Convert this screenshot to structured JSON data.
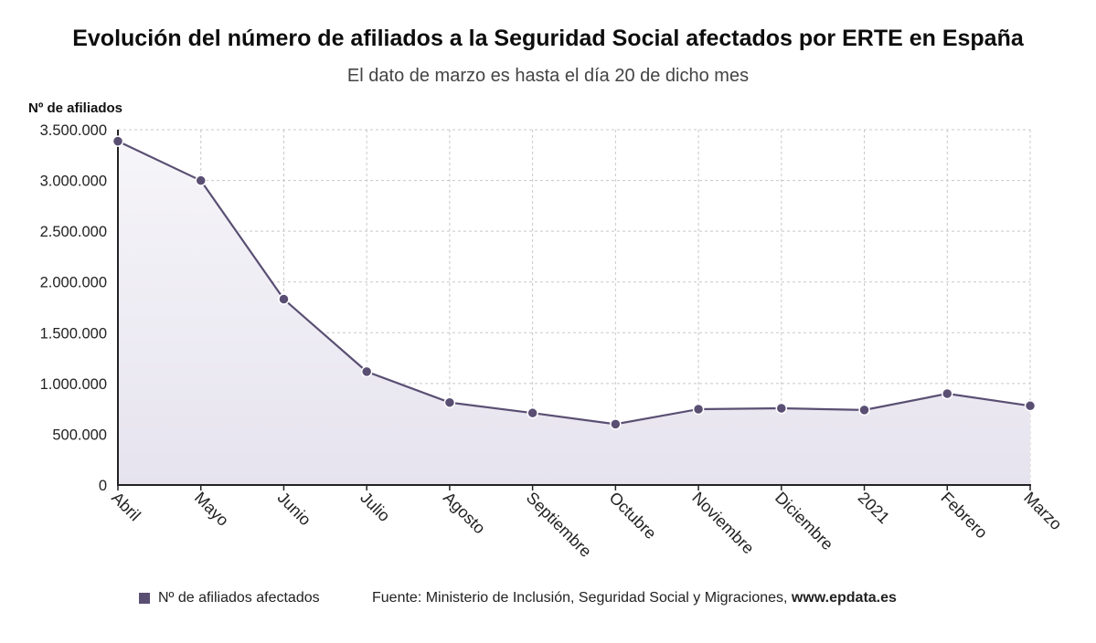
{
  "chart_data": {
    "type": "area",
    "title": "Evolución del número de afiliados a la Seguridad Social afectados por ERTE en España",
    "subtitle": "El dato de marzo es hasta el día 20 de dicho mes",
    "ylabel": "Nº de afiliados",
    "xlabel": "",
    "categories": [
      "Abril",
      "Mayo",
      "Junio",
      "Julio",
      "Agosto",
      "Septiembre",
      "Octubre",
      "Noviembre",
      "Diciembre",
      "2021",
      "Febrero",
      "Marzo"
    ],
    "series": [
      {
        "name": "Nº de afiliados afectados",
        "values": [
          3386785,
          2998970,
          1830664,
          1116699,
          812438,
          709115,
          599470,
          746900,
          755613,
          738969,
          899383,
          780000
        ],
        "color": "#5a4f73"
      }
    ],
    "ylim": [
      0,
      3500000
    ],
    "yticks": [
      0,
      500000,
      1000000,
      1500000,
      2000000,
      2500000,
      3000000,
      3500000
    ],
    "ytick_labels": [
      "0",
      "500.000",
      "1.000.000",
      "1.500.000",
      "2.000.000",
      "2.500.000",
      "3.000.000",
      "3.500.000"
    ],
    "grid": true,
    "legend_position": "bottom-left"
  },
  "footer": {
    "legend_label": "Nº de afiliados afectados",
    "source_text": "Fuente: Ministerio de Inclusión, Seguridad Social y Migraciones, ",
    "source_url": "www.epdata.es"
  },
  "colors": {
    "line": "#5a4f73",
    "area_top": "#eceaf1",
    "grid": "#c8c8c8"
  }
}
